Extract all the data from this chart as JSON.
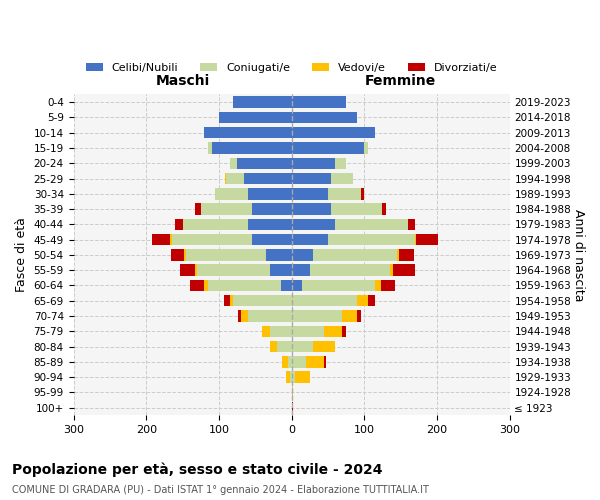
{
  "age_groups": [
    "100+",
    "95-99",
    "90-94",
    "85-89",
    "80-84",
    "75-79",
    "70-74",
    "65-69",
    "60-64",
    "55-59",
    "50-54",
    "45-49",
    "40-44",
    "35-39",
    "30-34",
    "25-29",
    "20-24",
    "15-19",
    "10-14",
    "5-9",
    "0-4"
  ],
  "birth_years": [
    "≤ 1923",
    "1924-1928",
    "1929-1933",
    "1934-1938",
    "1939-1943",
    "1944-1948",
    "1949-1953",
    "1954-1958",
    "1959-1963",
    "1964-1968",
    "1969-1973",
    "1974-1978",
    "1979-1983",
    "1984-1988",
    "1989-1993",
    "1994-1998",
    "1999-2003",
    "2004-2008",
    "2009-2013",
    "2014-2018",
    "2019-2023"
  ],
  "colors": {
    "celibe": "#4472c4",
    "coniugato": "#c5d9a0",
    "vedovo": "#ffc000",
    "divorziato": "#c00000"
  },
  "maschi": {
    "celibe": [
      0,
      0,
      0,
      0,
      0,
      0,
      0,
      0,
      15,
      30,
      35,
      55,
      60,
      55,
      60,
      65,
      75,
      110,
      120,
      100,
      80
    ],
    "coniugato": [
      0,
      0,
      2,
      5,
      20,
      30,
      60,
      80,
      100,
      100,
      110,
      110,
      90,
      70,
      45,
      25,
      10,
      5,
      0,
      0,
      0
    ],
    "vedovo": [
      0,
      0,
      5,
      8,
      10,
      10,
      10,
      5,
      5,
      3,
      3,
      2,
      0,
      0,
      0,
      2,
      0,
      0,
      0,
      0,
      0
    ],
    "divorziato": [
      0,
      0,
      0,
      0,
      0,
      0,
      3,
      8,
      20,
      20,
      18,
      25,
      10,
      8,
      0,
      0,
      0,
      0,
      0,
      0,
      0
    ]
  },
  "femmine": {
    "nubile": [
      0,
      0,
      0,
      0,
      0,
      0,
      0,
      0,
      15,
      25,
      30,
      50,
      60,
      55,
      50,
      55,
      60,
      100,
      115,
      90,
      75
    ],
    "coniugata": [
      0,
      0,
      5,
      20,
      30,
      45,
      70,
      90,
      100,
      110,
      115,
      120,
      100,
      70,
      45,
      30,
      15,
      5,
      0,
      0,
      0
    ],
    "vedova": [
      0,
      2,
      20,
      25,
      30,
      25,
      20,
      15,
      8,
      5,
      3,
      2,
      0,
      0,
      0,
      0,
      0,
      0,
      0,
      0,
      0
    ],
    "divorziata": [
      2,
      0,
      0,
      2,
      0,
      5,
      5,
      10,
      20,
      30,
      20,
      30,
      10,
      5,
      5,
      0,
      0,
      0,
      0,
      0,
      0
    ]
  },
  "xlim": 300,
  "title": "Popolazione per età, sesso e stato civile - 2024",
  "subtitle": "COMUNE DI GRADARA (PU) - Dati ISTAT 1° gennaio 2024 - Elaborazione TUTTITALIA.IT",
  "xlabel_left": "Maschi",
  "xlabel_right": "Femmine",
  "ylabel": "Fasce di età",
  "ylabel_right": "Anni di nascita",
  "legend_labels": [
    "Celibi/Nubili",
    "Coniugati/e",
    "Vedovi/e",
    "Divorziati/e"
  ],
  "background_color": "#ffffff"
}
